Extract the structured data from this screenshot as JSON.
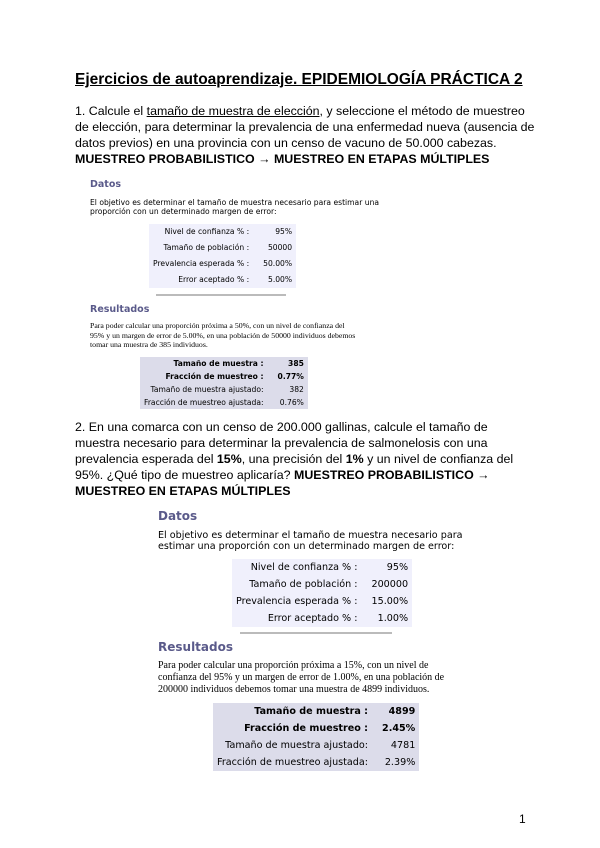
{
  "title": "Ejercicios de autoaprendizaje. EPIDEMIOLOGÍA PRÁCTICA 2",
  "q1": {
    "pre": "1. Calcule el ",
    "link": "tamaño de muestra de elección",
    "post": ", y seleccione el método de muestreo de elección, para determinar la prevalencia de una enfermedad nueva (ausencia de datos previos) en una provincia con un censo de vacuno de 50.000 cabezas.",
    "answer": "MUESTREO PROBABILISTICO → MUESTREO EN ETAPAS MÚLTIPLES"
  },
  "shot1": {
    "datos": "Datos",
    "intro": "El objetivo es determinar el tamaño de muestra necesario para estimar una proporción con un determinado margen de error:",
    "inputs": [
      [
        "Nivel de confianza % :",
        "95%"
      ],
      [
        "Tamaño de población :",
        "50000"
      ],
      [
        "Prevalencia esperada % :",
        "50.00%"
      ],
      [
        "Error aceptado % :",
        "5.00%"
      ]
    ],
    "resultados": "Resultados",
    "text": "Para poder calcular una proporción próxima a 50%, con un nivel de confianza del 95% y un margen de error de 5.00%, en una población de 50000 individuos debemos tomar una muestra de 385 individuos.",
    "results": [
      [
        "Tamaño de muestra :",
        "385"
      ],
      [
        "Fracción de muestreo :",
        "0.77%"
      ],
      [
        "Tamaño de muestra ajustado:",
        "382"
      ],
      [
        "Fracción de muestreo ajustada:",
        "0.76%"
      ]
    ]
  },
  "q2": {
    "text": "2. En una comarca con un censo de 200.000 gallinas, calcule el tamaño de muestra necesario para determinar la prevalencia de salmonelosis con una prevalencia esperada del ",
    "b1": "15%",
    "t2": ", una precisión del ",
    "b2": "1%",
    "t3": " y un nivel de confianza del 95%. ¿Qué tipo de muestreo aplicaría? ",
    "answer": "MUESTREO PROBABILISTICO → MUESTREO EN ETAPAS MÚLTIPLES"
  },
  "shot2": {
    "datos": "Datos",
    "intro": "El objetivo es determinar el tamaño de muestra necesario para estimar una proporción con un determinado margen de error:",
    "inputs": [
      [
        "Nivel de confianza % :",
        "95%"
      ],
      [
        "Tamaño de población :",
        "200000"
      ],
      [
        "Prevalencia esperada % :",
        "15.00%"
      ],
      [
        "Error aceptado % :",
        "1.00%"
      ]
    ],
    "resultados": "Resultados",
    "text": "Para poder calcular una proporción próxima a 15%, con un nivel de confianza del 95% y un margen de error de 1.00%, en una población de 200000 individuos debemos tomar una muestra de 4899 individuos.",
    "results": [
      [
        "Tamaño de muestra :",
        "4899"
      ],
      [
        "Fracción de muestreo :",
        "2.45%"
      ],
      [
        "Tamaño de muestra ajustado:",
        "4781"
      ],
      [
        "Fracción de muestreo ajustada:",
        "2.39%"
      ]
    ]
  },
  "page_number": "1"
}
